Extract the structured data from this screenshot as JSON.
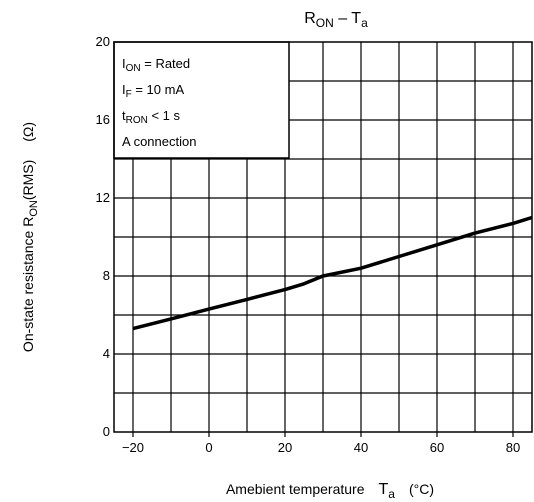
{
  "chart_data": {
    "type": "line",
    "title": {
      "main": "R",
      "main_sub": "ON",
      "sep": " – ",
      "var": "T",
      "var_sub": "a"
    },
    "xlabel": {
      "text": "Amebient temperature",
      "sym": "T",
      "sym_sub": "a",
      "unit": "(°C)"
    },
    "ylabel": {
      "text": "On-state resistance R",
      "sub": "ON",
      "rest": "(RMS)",
      "unit": "(Ω)"
    },
    "xlim": [
      -25,
      85
    ],
    "ylim": [
      0,
      20
    ],
    "x_ticks": [
      {
        "value": -20,
        "label": "−20"
      },
      {
        "value": 0,
        "label": "0"
      },
      {
        "value": 20,
        "label": "20"
      },
      {
        "value": 40,
        "label": "40"
      },
      {
        "value": 60,
        "label": "60"
      },
      {
        "value": 80,
        "label": "80"
      }
    ],
    "y_ticks": [
      {
        "value": 0,
        "label": "0"
      },
      {
        "value": 4,
        "label": "4"
      },
      {
        "value": 8,
        "label": "8"
      },
      {
        "value": 12,
        "label": "12"
      },
      {
        "value": 16,
        "label": "16"
      },
      {
        "value": 20,
        "label": "20"
      }
    ],
    "grid": true,
    "x_grid": [
      -20,
      -10,
      0,
      10,
      20,
      30,
      40,
      50,
      60,
      70,
      80
    ],
    "y_grid": [
      2,
      4,
      6,
      8,
      10,
      12,
      14,
      16,
      18
    ],
    "series": [
      {
        "color": "#000000",
        "x": [
          -20,
          -10,
          0,
          10,
          20,
          25,
          30,
          35,
          40,
          50,
          60,
          70,
          80,
          85
        ],
        "y": [
          5.3,
          5.8,
          6.3,
          6.8,
          7.3,
          7.6,
          8.0,
          8.2,
          8.4,
          9.0,
          9.6,
          10.2,
          10.7,
          11.0
        ]
      }
    ],
    "legend_box": {
      "position": "top-left",
      "lines": [
        {
          "pre": "I",
          "sub": "ON",
          "post": " = Rated"
        },
        {
          "pre": "I",
          "sub": "F",
          "post": " = 10 mA"
        },
        {
          "pre": "t",
          "sub": "RON",
          "post": " < 1 s"
        },
        {
          "pre": "A connection",
          "sub": "",
          "post": ""
        }
      ]
    }
  }
}
